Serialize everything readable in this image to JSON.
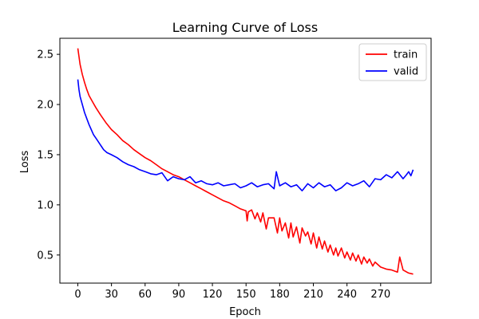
{
  "chart_data": {
    "type": "line",
    "title": "Learning Curve of Loss",
    "xlabel": "Epoch",
    "ylabel": "Loss",
    "xlim": [
      -16,
      315
    ],
    "ylim": [
      0.22,
      2.66
    ],
    "xticks": [
      0,
      30,
      60,
      90,
      120,
      150,
      180,
      210,
      240,
      270
    ],
    "yticks": [
      0.5,
      1.0,
      1.5,
      2.0,
      2.5
    ],
    "grid": false,
    "legend": "top-right",
    "series": [
      {
        "name": "train",
        "color": "#ff0000",
        "x": [
          0,
          2,
          4,
          6,
          8,
          10,
          13,
          16,
          20,
          25,
          30,
          35,
          40,
          45,
          50,
          55,
          60,
          65,
          70,
          75,
          80,
          85,
          90,
          95,
          100,
          105,
          110,
          115,
          120,
          125,
          130,
          135,
          140,
          145,
          150,
          151,
          152,
          155,
          158,
          160,
          163,
          165,
          168,
          170,
          175,
          178,
          180,
          182,
          185,
          188,
          190,
          192,
          195,
          198,
          200,
          203,
          205,
          208,
          210,
          213,
          215,
          218,
          220,
          223,
          225,
          228,
          230,
          232,
          235,
          238,
          240,
          243,
          245,
          248,
          250,
          253,
          255,
          258,
          260,
          263,
          265,
          270,
          275,
          280,
          285,
          287,
          290,
          295,
          299
        ],
        "y": [
          2.56,
          2.4,
          2.3,
          2.22,
          2.15,
          2.09,
          2.03,
          1.97,
          1.9,
          1.82,
          1.75,
          1.7,
          1.64,
          1.6,
          1.55,
          1.51,
          1.47,
          1.44,
          1.4,
          1.36,
          1.33,
          1.3,
          1.28,
          1.25,
          1.22,
          1.19,
          1.16,
          1.13,
          1.1,
          1.07,
          1.04,
          1.02,
          0.99,
          0.96,
          0.94,
          0.84,
          0.93,
          0.95,
          0.86,
          0.92,
          0.83,
          0.92,
          0.76,
          0.87,
          0.87,
          0.72,
          0.87,
          0.74,
          0.82,
          0.67,
          0.82,
          0.68,
          0.78,
          0.62,
          0.77,
          0.69,
          0.73,
          0.61,
          0.72,
          0.57,
          0.68,
          0.56,
          0.64,
          0.53,
          0.6,
          0.5,
          0.57,
          0.49,
          0.57,
          0.47,
          0.53,
          0.45,
          0.52,
          0.44,
          0.5,
          0.41,
          0.48,
          0.42,
          0.46,
          0.39,
          0.43,
          0.38,
          0.36,
          0.35,
          0.33,
          0.48,
          0.35,
          0.32,
          0.31
        ]
      },
      {
        "name": "valid",
        "color": "#0000ff",
        "x": [
          0,
          1,
          2,
          4,
          6,
          8,
          10,
          12,
          14,
          17,
          20,
          23,
          26,
          30,
          35,
          40,
          45,
          50,
          55,
          60,
          65,
          70,
          75,
          80,
          85,
          90,
          95,
          100,
          105,
          110,
          115,
          120,
          125,
          130,
          135,
          140,
          145,
          150,
          155,
          160,
          165,
          170,
          175,
          177,
          180,
          185,
          190,
          195,
          200,
          205,
          210,
          215,
          220,
          225,
          230,
          235,
          240,
          245,
          250,
          255,
          260,
          265,
          270,
          275,
          280,
          285,
          290,
          293,
          295,
          297,
          299
        ],
        "y": [
          2.25,
          2.15,
          2.08,
          2.0,
          1.92,
          1.86,
          1.8,
          1.75,
          1.7,
          1.65,
          1.6,
          1.55,
          1.52,
          1.5,
          1.47,
          1.43,
          1.4,
          1.38,
          1.35,
          1.33,
          1.31,
          1.3,
          1.32,
          1.24,
          1.28,
          1.26,
          1.25,
          1.28,
          1.22,
          1.24,
          1.21,
          1.2,
          1.22,
          1.19,
          1.2,
          1.21,
          1.17,
          1.19,
          1.22,
          1.18,
          1.2,
          1.21,
          1.16,
          1.33,
          1.19,
          1.22,
          1.18,
          1.2,
          1.14,
          1.21,
          1.17,
          1.22,
          1.18,
          1.2,
          1.14,
          1.17,
          1.22,
          1.19,
          1.21,
          1.24,
          1.18,
          1.26,
          1.25,
          1.3,
          1.27,
          1.33,
          1.26,
          1.3,
          1.33,
          1.29,
          1.35
        ]
      }
    ]
  }
}
